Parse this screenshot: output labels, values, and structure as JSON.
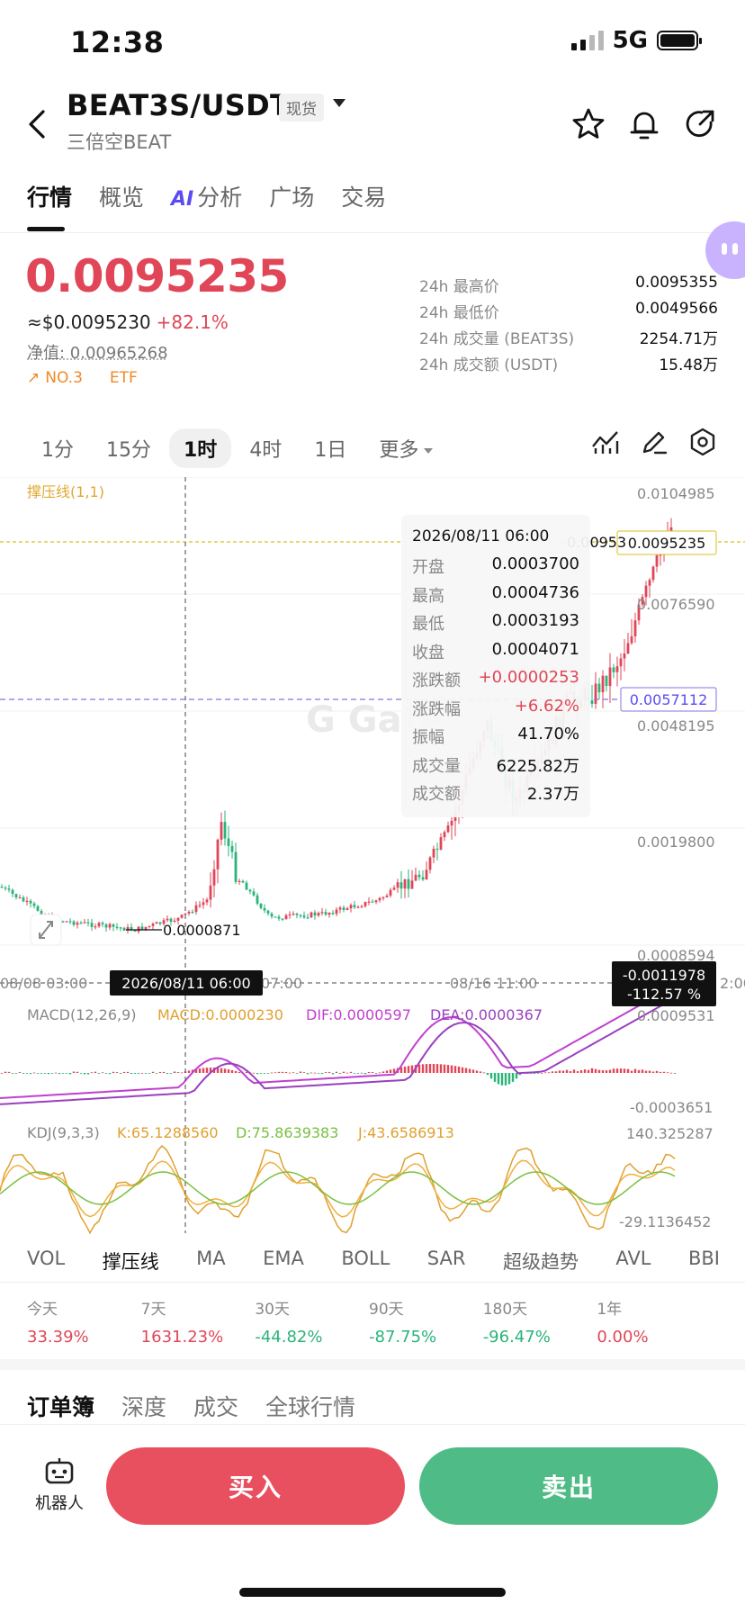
{
  "status": {
    "time": "12:38",
    "network": "5G"
  },
  "header": {
    "pair": "BEAT3S/USDT",
    "tag": "现货",
    "subtitle": "三倍空BEAT"
  },
  "tabs": [
    "行情",
    "概览",
    "分析",
    "广场",
    "交易"
  ],
  "tabs_ai_mark": "AI",
  "price": {
    "last": "0.0095235",
    "usd": "≈$0.0095230",
    "change": "+82.1%",
    "net_value": "净值: 0.00965268",
    "rank": "NO.3",
    "type": "ETF"
  },
  "stats": [
    {
      "label": "24h 最高价",
      "value": "0.0095355"
    },
    {
      "label": "24h 最低价",
      "value": "0.0049566"
    },
    {
      "label": "24h 成交量 (BEAT3S)",
      "value": "2254.71万"
    },
    {
      "label": "24h 成交额 (USDT)",
      "value": "15.48万"
    }
  ],
  "intervals": [
    "1分",
    "15分",
    "1时",
    "4时",
    "1日",
    "更多"
  ],
  "chart": {
    "indicator_label": "撑压线(1,1)",
    "y_ticks": [
      "0.0104985",
      "0.0076590",
      "0.0048195",
      "0.0019800",
      "0.0008594"
    ],
    "current_price_label": "0.0095235",
    "price_line_label": "0.0057112",
    "low_label": "0.0000871",
    "x_labels": [
      "08/08 03:00",
      "07:00",
      "08/16 11:00",
      "2:00"
    ],
    "crosshair_time": "2026/08/11 06:00",
    "crosshair_change": "-0.0011978",
    "crosshair_change_pct": "-112.57 %",
    "hidden_price_partial": "0.00953",
    "macd": {
      "title": "MACD(12,26,9)",
      "macd": "MACD:0.0000230",
      "dif": "DIF:0.0000597",
      "dea": "DEA:0.0000367",
      "max": "0.0009531",
      "min": "-0.0003651"
    },
    "kdj": {
      "title": "KDJ(9,3,3)",
      "k": "K:65.1288560",
      "d": "D:75.8639383",
      "j": "J:43.6586913",
      "max": "140.325287",
      "min": "-29.1136452"
    },
    "colors": {
      "up": "#e04657",
      "down": "#2bb37a",
      "dif": "#c040d0",
      "dea": "#9a40c0",
      "k": "#f0b040",
      "d": "#7ac040",
      "j": "#e0a030"
    }
  },
  "tooltip": {
    "date": "2026/08/11 06:00",
    "rows": [
      {
        "label": "开盘",
        "value": "0.0003700"
      },
      {
        "label": "最高",
        "value": "0.0004736"
      },
      {
        "label": "最低",
        "value": "0.0003193"
      },
      {
        "label": "收盘",
        "value": "0.0004071"
      },
      {
        "label": "涨跌额",
        "value": "+0.0000253"
      },
      {
        "label": "涨跌幅",
        "value": "+6.62%"
      },
      {
        "label": "振幅",
        "value": "41.70%"
      },
      {
        "label": "成交量",
        "value": "6225.82万"
      },
      {
        "label": "成交额",
        "value": "2.37万"
      }
    ]
  },
  "indicators": [
    "VOL",
    "撑压线",
    "MA",
    "EMA",
    "BOLL",
    "SAR",
    "超级趋势",
    "AVL",
    "BBI"
  ],
  "performance": [
    {
      "label": "今天",
      "value": "33.39%"
    },
    {
      "label": "7天",
      "value": "1631.23%"
    },
    {
      "label": "30天",
      "value": "-44.82%"
    },
    {
      "label": "90天",
      "value": "-87.75%"
    },
    {
      "label": "180天",
      "value": "-96.47%"
    },
    {
      "label": "1年",
      "value": "0.00%"
    }
  ],
  "book_tabs": [
    "订单簿",
    "深度",
    "成交",
    "全球行情"
  ],
  "footer": {
    "robot": "机器人",
    "buy": "买入",
    "sell": "卖出"
  }
}
